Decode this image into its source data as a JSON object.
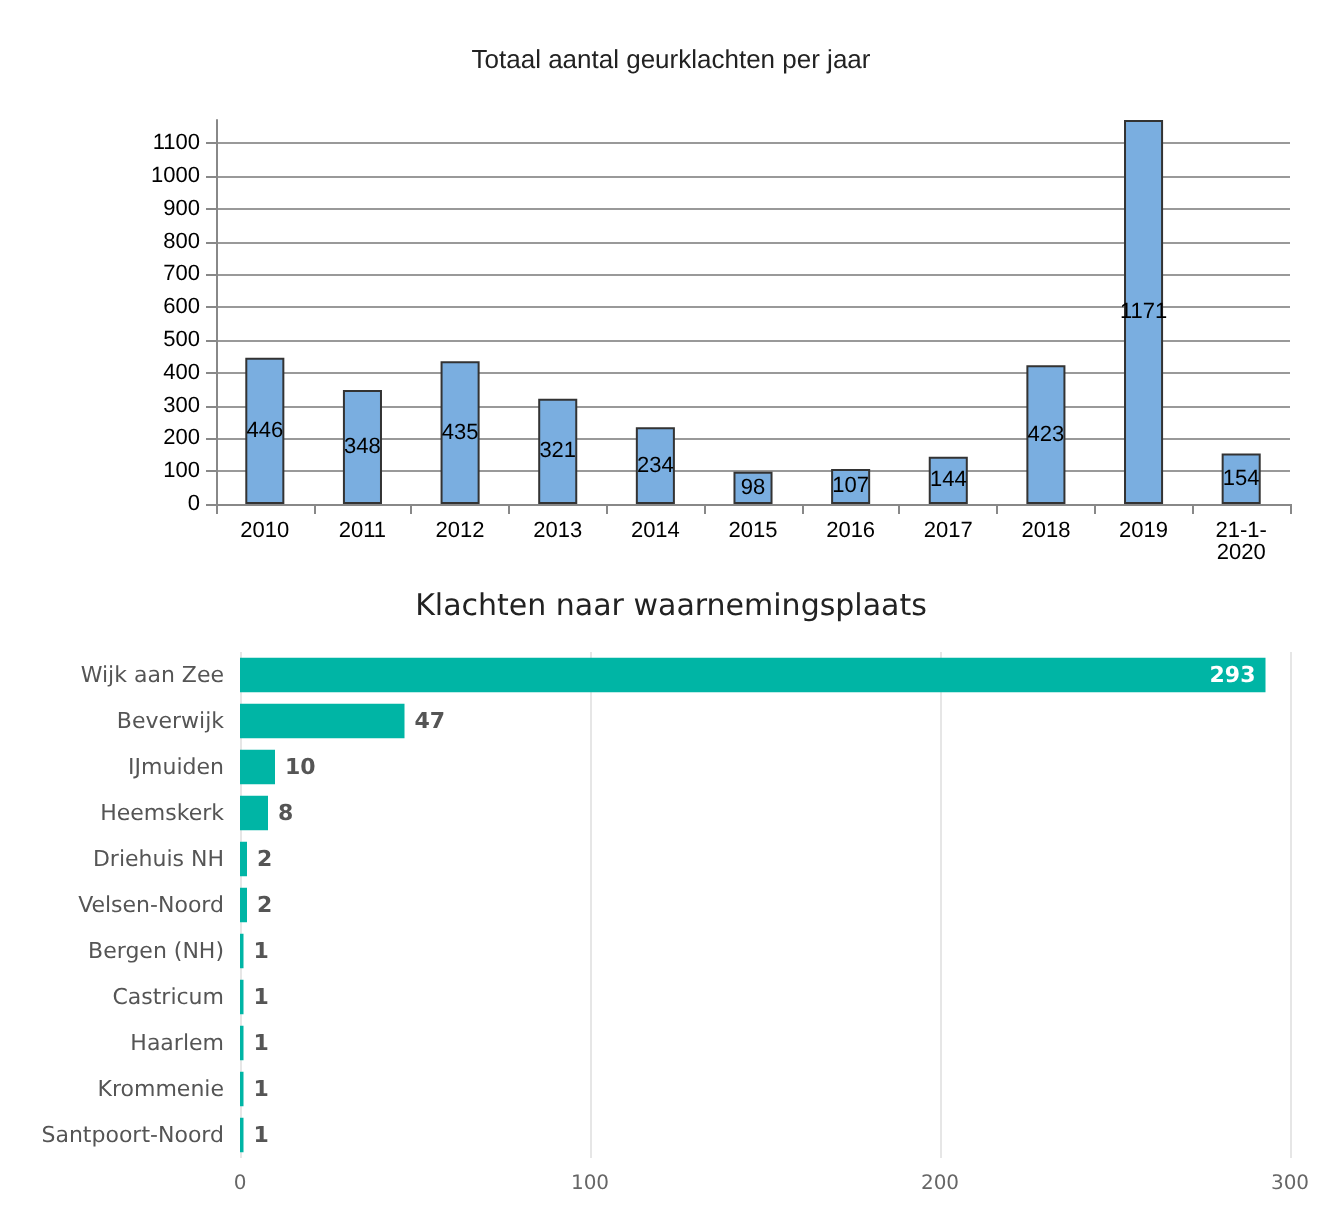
{
  "chart_data": [
    {
      "type": "bar",
      "title": "Totaal aantal geurklachten per jaar",
      "categories": [
        "2010",
        "2011",
        "2012",
        "2013",
        "2014",
        "2015",
        "2016",
        "2017",
        "2018",
        "2019",
        "21-1-\n2020"
      ],
      "values": [
        446,
        348,
        435,
        321,
        234,
        98,
        107,
        144,
        423,
        1171,
        154
      ],
      "color": "#7aaee0",
      "ylim": [
        0,
        1171
      ],
      "yticks": [
        0,
        100,
        200,
        300,
        400,
        500,
        600,
        700,
        800,
        900,
        1000,
        1100
      ],
      "grid": "y",
      "data_labels": true
    },
    {
      "type": "bar",
      "orientation": "horizontal",
      "title": "Klachten naar waarnemingsplaats",
      "categories": [
        "Wijk aan Zee",
        "Beverwijk",
        "IJmuiden",
        "Heemskerk",
        "Driehuis NH",
        "Velsen-Noord",
        "Bergen (NH)",
        "Castricum",
        "Haarlem",
        "Krommenie",
        "Santpoort-Noord"
      ],
      "values": [
        293,
        47,
        10,
        8,
        2,
        2,
        1,
        1,
        1,
        1,
        1
      ],
      "color": "#00b5a5",
      "xlim": [
        0,
        300
      ],
      "xticks": [
        0,
        100,
        200,
        300
      ],
      "grid": "x",
      "data_labels": true
    }
  ]
}
